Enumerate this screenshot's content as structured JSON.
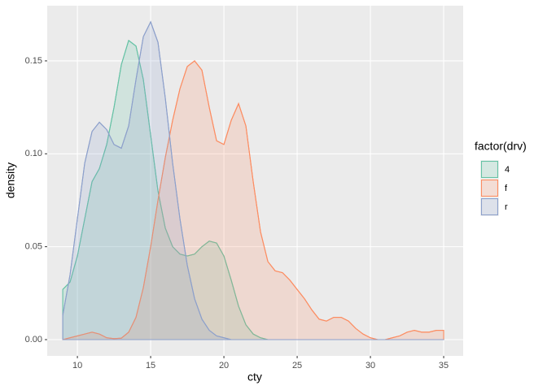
{
  "chart_data": {
    "type": "density",
    "x_label": "cty",
    "y_label": "density",
    "legend_title": "factor(drv)",
    "legend_position": "right",
    "x": [
      9,
      9.5,
      10,
      10.5,
      11,
      11.5,
      12,
      12.5,
      13,
      13.5,
      14,
      14.5,
      15,
      15.5,
      16,
      16.5,
      17,
      17.5,
      18,
      18.5,
      19,
      19.5,
      20,
      20.5,
      21,
      21.5,
      22,
      22.5,
      23,
      23.5,
      24,
      24.5,
      25,
      25.5,
      26,
      26.5,
      27,
      27.5,
      28,
      28.5,
      29,
      29.5,
      30,
      30.5,
      31,
      31.5,
      32,
      32.5,
      33,
      33.5,
      34,
      34.5,
      35
    ],
    "series": [
      {
        "name": "4",
        "color": "#66c2a5",
        "values": [
          0.027,
          0.031,
          0.045,
          0.065,
          0.085,
          0.092,
          0.105,
          0.125,
          0.148,
          0.161,
          0.158,
          0.14,
          0.11,
          0.08,
          0.06,
          0.05,
          0.046,
          0.045,
          0.046,
          0.05,
          0.053,
          0.052,
          0.045,
          0.032,
          0.018,
          0.008,
          0.003,
          0.001,
          0,
          0,
          0,
          0,
          0,
          0,
          0,
          0,
          0,
          0,
          0,
          0,
          0,
          0,
          0,
          0,
          0,
          0,
          0,
          0,
          0,
          0,
          0,
          0,
          0
        ]
      },
      {
        "name": "f",
        "color": "#fc8d62",
        "values": [
          0,
          0.001,
          0.002,
          0.003,
          0.004,
          0.003,
          0.001,
          0.0005,
          0.0008,
          0.004,
          0.012,
          0.028,
          0.05,
          0.075,
          0.098,
          0.118,
          0.135,
          0.147,
          0.15,
          0.145,
          0.125,
          0.107,
          0.105,
          0.118,
          0.127,
          0.115,
          0.085,
          0.058,
          0.042,
          0.037,
          0.036,
          0.032,
          0.027,
          0.022,
          0.016,
          0.011,
          0.01,
          0.012,
          0.012,
          0.01,
          0.006,
          0.003,
          0.001,
          0,
          0,
          0.001,
          0.002,
          0.004,
          0.005,
          0.004,
          0.004,
          0.005,
          0.005
        ]
      },
      {
        "name": "r",
        "color": "#8da0cb",
        "values": [
          0.013,
          0.035,
          0.065,
          0.095,
          0.112,
          0.117,
          0.113,
          0.105,
          0.103,
          0.115,
          0.14,
          0.163,
          0.171,
          0.16,
          0.13,
          0.095,
          0.065,
          0.04,
          0.022,
          0.011,
          0.005,
          0.002,
          0.001,
          0,
          0,
          0,
          0,
          0,
          0,
          0,
          0,
          0,
          0,
          0,
          0,
          0,
          0,
          0,
          0,
          0,
          0,
          0,
          0,
          0,
          0,
          0,
          0,
          0,
          0,
          0,
          0,
          0,
          0
        ]
      }
    ],
    "xlim": [
      7.94,
      36.33
    ],
    "ylim": [
      -0.00875,
      0.1797
    ],
    "xticks": [
      10,
      15,
      20,
      25,
      30,
      35
    ],
    "yticks": [
      {
        "value": 0,
        "label": "0.00"
      },
      {
        "value": 0.05,
        "label": "0.05"
      },
      {
        "value": 0.1,
        "label": "0.10"
      },
      {
        "value": 0.15,
        "label": "0.15"
      }
    ],
    "grid": true,
    "fill_opacity": 0.2
  }
}
